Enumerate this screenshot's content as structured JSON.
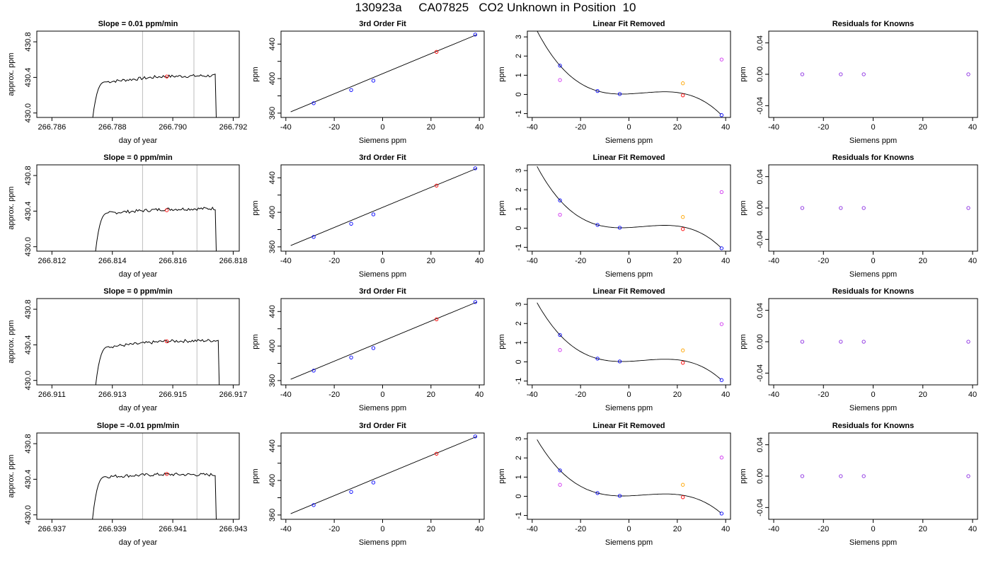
{
  "page": {
    "title": "130923a     CA07825   CO2 Unknown in Position  10"
  },
  "colors": {
    "axis": "#000000",
    "trace": "#000000",
    "window_line": "#bebebe",
    "known": "#0000ff",
    "unknown": "#ff0000",
    "magenta": "#d030f0",
    "orange": "#ffa500",
    "residual": "#8a2be2"
  },
  "chart_data": [
    {
      "row": 0,
      "panel": "timeseries",
      "type": "line",
      "title": "Slope =  0.01  ppm/min",
      "xlabel": "day of year",
      "ylabel": "approx. ppm",
      "xlim": [
        266.7855,
        266.7922
      ],
      "ylim": [
        429.95,
        430.92
      ],
      "xticks": [
        266.786,
        266.788,
        266.79,
        266.792
      ],
      "xtick_labels": [
        "266.786",
        "266.788",
        "266.790",
        "266.792"
      ],
      "yticks": [
        430.0,
        430.4,
        430.8
      ],
      "ytick_labels": [
        "430.0",
        "430.4",
        "430.8"
      ],
      "x_start": 266.7872,
      "x_end": 266.7915,
      "rise_to": 430.35,
      "plateau": 430.4,
      "plateau_end": 430.42,
      "window": [
        266.789,
        266.7907
      ],
      "unknown_point": [
        266.7898,
        430.41
      ]
    },
    {
      "row": 0,
      "panel": "fit",
      "type": "scatter",
      "title": "3rd Order Fit",
      "xlabel": "Siemens ppm",
      "ylabel": "ppm",
      "xlim": [
        -42,
        42
      ],
      "ylim": [
        355,
        455
      ],
      "xticks": [
        -40,
        -20,
        0,
        20,
        40
      ],
      "xtick_labels": [
        "-40",
        "-20",
        "0",
        "20",
        "40"
      ],
      "yticks": [
        360,
        380,
        400,
        420,
        440
      ],
      "ytick_labels": [
        "360",
        "",
        "400",
        "",
        "440"
      ],
      "curve_x": [
        -38,
        39
      ],
      "curve_y": [
        361.5,
        451
      ],
      "knowns": [
        [
          -28.5,
          371.5
        ],
        [
          -13,
          386.7
        ],
        [
          -3.8,
          397.6
        ],
        [
          38.3,
          451
        ]
      ],
      "unknown": [
        [
          22.3,
          431
        ]
      ]
    },
    {
      "row": 0,
      "panel": "linear_removed",
      "type": "scatter",
      "title": "Linear Fit Removed",
      "xlabel": "Siemens ppm",
      "ylabel": "ppm",
      "xlim": [
        -42,
        42
      ],
      "ylim": [
        -1.2,
        3.3
      ],
      "xticks": [
        -40,
        -20,
        0,
        20,
        40
      ],
      "xtick_labels": [
        "-40",
        "-20",
        "0",
        "20",
        "40"
      ],
      "yticks": [
        -1,
        0,
        1,
        2,
        3
      ],
      "ytick_labels": [
        "-1",
        "0",
        "1",
        "2",
        "3"
      ],
      "knowns": [
        [
          -28.5,
          1.5
        ],
        [
          -13,
          0.18
        ],
        [
          -3.8,
          0.02
        ],
        [
          38.3,
          -1.08
        ]
      ],
      "unknown": [
        [
          22.3,
          -0.05
        ]
      ],
      "magenta": [
        [
          -28.5,
          0.75
        ],
        [
          38.3,
          1.82
        ]
      ],
      "orange": [
        [
          22.3,
          0.58
        ]
      ]
    },
    {
      "row": 0,
      "panel": "residuals",
      "type": "scatter",
      "title": "Residuals for Knowns",
      "xlabel": "Siemens ppm",
      "ylabel": "ppm",
      "xlim": [
        -42,
        42
      ],
      "ylim": [
        -0.055,
        0.055
      ],
      "xticks": [
        -40,
        -20,
        0,
        20,
        40
      ],
      "xtick_labels": [
        "-40",
        "-20",
        "0",
        "20",
        "40"
      ],
      "yticks": [
        -0.04,
        0,
        0.04
      ],
      "ytick_labels": [
        "-0.04",
        "0.00",
        "0.04"
      ],
      "points": [
        [
          -28.5,
          0
        ],
        [
          -13,
          0
        ],
        [
          -3.8,
          0
        ],
        [
          38.3,
          0
        ]
      ]
    },
    {
      "row": 1,
      "panel": "timeseries",
      "type": "line",
      "title": "Slope =  0  ppm/min",
      "xlabel": "day of year",
      "ylabel": "approx. ppm",
      "xlim": [
        266.8115,
        266.8182
      ],
      "ylim": [
        429.95,
        430.92
      ],
      "xticks": [
        266.812,
        266.814,
        266.816,
        266.818
      ],
      "xtick_labels": [
        "266.812",
        "266.814",
        "266.816",
        "266.818"
      ],
      "yticks": [
        430.0,
        430.4,
        430.8
      ],
      "ytick_labels": [
        "430.0",
        "430.4",
        "430.8"
      ],
      "x_start": 266.8133,
      "x_end": 266.8175,
      "rise_to": 430.38,
      "plateau": 430.41,
      "plateau_end": 430.43,
      "window": [
        266.815,
        266.8168
      ],
      "unknown_point": [
        266.8158,
        430.41
      ]
    },
    {
      "row": 1,
      "panel": "fit",
      "type": "scatter",
      "title": "3rd Order Fit",
      "xlabel": "Siemens ppm",
      "ylabel": "ppm",
      "xlim": [
        -42,
        42
      ],
      "ylim": [
        355,
        455
      ],
      "xticks": [
        -40,
        -20,
        0,
        20,
        40
      ],
      "xtick_labels": [
        "-40",
        "-20",
        "0",
        "20",
        "40"
      ],
      "yticks": [
        360,
        380,
        400,
        420,
        440
      ],
      "ytick_labels": [
        "360",
        "",
        "400",
        "",
        "440"
      ],
      "curve_x": [
        -38,
        39
      ],
      "curve_y": [
        361.5,
        451
      ],
      "knowns": [
        [
          -28.5,
          371.5
        ],
        [
          -13,
          386.7
        ],
        [
          -3.8,
          397.6
        ],
        [
          38.3,
          451
        ]
      ],
      "unknown": [
        [
          22.3,
          431
        ]
      ]
    },
    {
      "row": 1,
      "panel": "linear_removed",
      "type": "scatter",
      "title": "Linear Fit Removed",
      "xlabel": "Siemens ppm",
      "ylabel": "ppm",
      "xlim": [
        -42,
        42
      ],
      "ylim": [
        -1.2,
        3.3
      ],
      "xticks": [
        -40,
        -20,
        0,
        20,
        40
      ],
      "xtick_labels": [
        "-40",
        "-20",
        "0",
        "20",
        "40"
      ],
      "yticks": [
        -1,
        0,
        1,
        2,
        3
      ],
      "ytick_labels": [
        "-1",
        "0",
        "1",
        "2",
        "3"
      ],
      "knowns": [
        [
          -28.5,
          1.45
        ],
        [
          -13,
          0.17
        ],
        [
          -3.8,
          0.02
        ],
        [
          38.3,
          -1.05
        ]
      ],
      "unknown": [
        [
          22.3,
          -0.05
        ]
      ],
      "magenta": [
        [
          -28.5,
          0.7
        ],
        [
          38.3,
          1.88
        ]
      ],
      "orange": [
        [
          22.3,
          0.58
        ]
      ]
    },
    {
      "row": 1,
      "panel": "residuals",
      "type": "scatter",
      "title": "Residuals for Knowns",
      "xlabel": "Siemens ppm",
      "ylabel": "ppm",
      "xlim": [
        -42,
        42
      ],
      "ylim": [
        -0.055,
        0.055
      ],
      "xticks": [
        -40,
        -20,
        0,
        20,
        40
      ],
      "xtick_labels": [
        "-40",
        "-20",
        "0",
        "20",
        "40"
      ],
      "yticks": [
        -0.04,
        0,
        0.04
      ],
      "ytick_labels": [
        "-0.04",
        "0.00",
        "0.04"
      ],
      "points": [
        [
          -28.5,
          0
        ],
        [
          -13,
          0
        ],
        [
          -3.8,
          0
        ],
        [
          38.3,
          0
        ]
      ]
    },
    {
      "row": 2,
      "panel": "timeseries",
      "type": "line",
      "title": "Slope =  0  ppm/min",
      "xlabel": "day of year",
      "ylabel": "approx. ppm",
      "xlim": [
        266.9105,
        266.9172
      ],
      "ylim": [
        429.95,
        430.92
      ],
      "xticks": [
        266.911,
        266.913,
        266.915,
        266.917
      ],
      "xtick_labels": [
        "266.911",
        "266.913",
        "266.915",
        "266.917"
      ],
      "yticks": [
        430.0,
        430.4,
        430.8
      ],
      "ytick_labels": [
        "430.0",
        "430.4",
        "430.8"
      ],
      "x_start": 266.9123,
      "x_end": 266.9166,
      "rise_to": 430.38,
      "plateau": 430.43,
      "plateau_end": 430.45,
      "window": [
        266.914,
        266.9158
      ],
      "unknown_point": [
        266.9148,
        430.44
      ]
    },
    {
      "row": 2,
      "panel": "fit",
      "type": "scatter",
      "title": "3rd Order Fit",
      "xlabel": "Siemens ppm",
      "ylabel": "ppm",
      "xlim": [
        -42,
        42
      ],
      "ylim": [
        355,
        455
      ],
      "xticks": [
        -40,
        -20,
        0,
        20,
        40
      ],
      "xtick_labels": [
        "-40",
        "-20",
        "0",
        "20",
        "40"
      ],
      "yticks": [
        360,
        380,
        400,
        420,
        440
      ],
      "ytick_labels": [
        "360",
        "",
        "400",
        "",
        "440"
      ],
      "curve_x": [
        -38,
        39
      ],
      "curve_y": [
        361.5,
        451
      ],
      "knowns": [
        [
          -28.5,
          371.5
        ],
        [
          -13,
          386.7
        ],
        [
          -3.8,
          397.6
        ],
        [
          38.3,
          451
        ]
      ],
      "unknown": [
        [
          22.3,
          431
        ]
      ]
    },
    {
      "row": 2,
      "panel": "linear_removed",
      "type": "scatter",
      "title": "Linear Fit Removed",
      "xlabel": "Siemens ppm",
      "ylabel": "ppm",
      "xlim": [
        -42,
        42
      ],
      "ylim": [
        -1.2,
        3.3
      ],
      "xticks": [
        -40,
        -20,
        0,
        20,
        40
      ],
      "xtick_labels": [
        "-40",
        "-20",
        "0",
        "20",
        "40"
      ],
      "yticks": [
        -1,
        0,
        1,
        2,
        3
      ],
      "ytick_labels": [
        "-1",
        "0",
        "1",
        "2",
        "3"
      ],
      "knowns": [
        [
          -28.5,
          1.4
        ],
        [
          -13,
          0.17
        ],
        [
          -3.8,
          0.02
        ],
        [
          38.3,
          -0.95
        ]
      ],
      "unknown": [
        [
          22.3,
          -0.05
        ]
      ],
      "magenta": [
        [
          -28.5,
          0.62
        ],
        [
          38.3,
          1.97
        ]
      ],
      "orange": [
        [
          22.3,
          0.6
        ]
      ]
    },
    {
      "row": 2,
      "panel": "residuals",
      "type": "scatter",
      "title": "Residuals for Knowns",
      "xlabel": "Siemens ppm",
      "ylabel": "ppm",
      "xlim": [
        -42,
        42
      ],
      "ylim": [
        -0.055,
        0.055
      ],
      "xticks": [
        -40,
        -20,
        0,
        20,
        40
      ],
      "xtick_labels": [
        "-40",
        "-20",
        "0",
        "20",
        "40"
      ],
      "yticks": [
        -0.04,
        0,
        0.04
      ],
      "ytick_labels": [
        "-0.04",
        "0.00",
        "0.04"
      ],
      "points": [
        [
          -28.5,
          0
        ],
        [
          -13,
          0
        ],
        [
          -3.8,
          0
        ],
        [
          38.3,
          0
        ]
      ]
    },
    {
      "row": 3,
      "panel": "timeseries",
      "type": "line",
      "title": "Slope =  -0.01  ppm/min",
      "xlabel": "day of year",
      "ylabel": "approx. ppm",
      "xlim": [
        266.9365,
        266.9432
      ],
      "ylim": [
        429.95,
        430.92
      ],
      "xticks": [
        266.937,
        266.939,
        266.941,
        266.943
      ],
      "xtick_labels": [
        "266.937",
        "266.939",
        "266.941",
        "266.943"
      ],
      "yticks": [
        430.0,
        430.4,
        430.8
      ],
      "ytick_labels": [
        "430.0",
        "430.4",
        "430.8"
      ],
      "x_start": 266.9382,
      "x_end": 266.9425,
      "rise_to": 430.43,
      "plateau": 430.46,
      "plateau_end": 430.45,
      "window": [
        266.94,
        266.9418
      ],
      "unknown_point": [
        266.9408,
        430.46
      ]
    },
    {
      "row": 3,
      "panel": "fit",
      "type": "scatter",
      "title": "3rd Order Fit",
      "xlabel": "Siemens ppm",
      "ylabel": "ppm",
      "xlim": [
        -42,
        42
      ],
      "ylim": [
        355,
        455
      ],
      "xticks": [
        -40,
        -20,
        0,
        20,
        40
      ],
      "xtick_labels": [
        "-40",
        "-20",
        "0",
        "20",
        "40"
      ],
      "yticks": [
        360,
        380,
        400,
        420,
        440
      ],
      "ytick_labels": [
        "360",
        "",
        "400",
        "",
        "440"
      ],
      "curve_x": [
        -38,
        39
      ],
      "curve_y": [
        361.5,
        451
      ],
      "knowns": [
        [
          -28.5,
          371.5
        ],
        [
          -13,
          386.7
        ],
        [
          -3.8,
          397.6
        ],
        [
          38.3,
          451
        ]
      ],
      "unknown": [
        [
          22.3,
          431
        ]
      ]
    },
    {
      "row": 3,
      "panel": "linear_removed",
      "type": "scatter",
      "title": "Linear Fit Removed",
      "xlabel": "Siemens ppm",
      "ylabel": "ppm",
      "xlim": [
        -42,
        42
      ],
      "ylim": [
        -1.2,
        3.3
      ],
      "xticks": [
        -40,
        -20,
        0,
        20,
        40
      ],
      "xtick_labels": [
        "-40",
        "-20",
        "0",
        "20",
        "40"
      ],
      "yticks": [
        -1,
        0,
        1,
        2,
        3
      ],
      "ytick_labels": [
        "-1",
        "0",
        "1",
        "2",
        "3"
      ],
      "knowns": [
        [
          -28.5,
          1.35
        ],
        [
          -13,
          0.17
        ],
        [
          -3.8,
          0.02
        ],
        [
          38.3,
          -0.9
        ]
      ],
      "unknown": [
        [
          22.3,
          -0.05
        ]
      ],
      "magenta": [
        [
          -28.5,
          0.6
        ],
        [
          38.3,
          2.02
        ]
      ],
      "orange": [
        [
          22.3,
          0.6
        ]
      ]
    },
    {
      "row": 3,
      "panel": "residuals",
      "type": "scatter",
      "title": "Residuals for Knowns",
      "xlabel": "Siemens ppm",
      "ylabel": "ppm",
      "xlim": [
        -42,
        42
      ],
      "ylim": [
        -0.055,
        0.055
      ],
      "xticks": [
        -40,
        -20,
        0,
        20,
        40
      ],
      "xtick_labels": [
        "-40",
        "-20",
        "0",
        "20",
        "40"
      ],
      "yticks": [
        -0.04,
        0,
        0.04
      ],
      "ytick_labels": [
        "-0.04",
        "0.00",
        "0.04"
      ],
      "points": [
        [
          -28.5,
          0
        ],
        [
          -13,
          0
        ],
        [
          -3.8,
          0
        ],
        [
          38.3,
          0
        ]
      ]
    }
  ]
}
